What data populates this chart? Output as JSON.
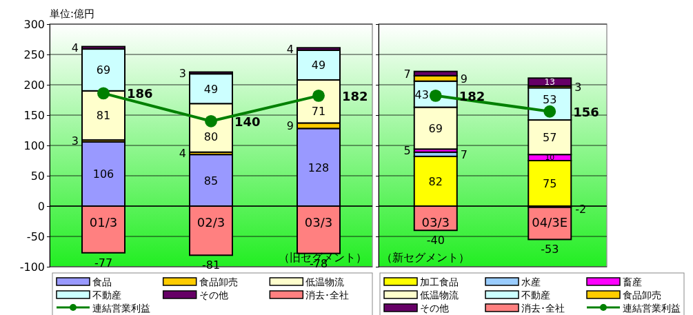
{
  "chart_data": [
    {
      "type": "bar",
      "ylabel": "単位:億円",
      "stacked": true,
      "categories": [
        "01/3",
        "02/3",
        "03/3"
      ],
      "ylim": [
        -100,
        300
      ],
      "yticks": [
        -100,
        -50,
        0,
        50,
        100,
        150,
        200,
        250,
        300
      ],
      "grid": "y",
      "legend": "bottom",
      "data_labels": true,
      "marker": "circle",
      "annotations": [
        "（旧セグメント）"
      ],
      "series": [
        {
          "name": "食品",
          "color": "#9999ff",
          "values": [
            106,
            85,
            128
          ]
        },
        {
          "name": "食品卸売",
          "color": "#ffcc00",
          "values": [
            3,
            4,
            9
          ]
        },
        {
          "name": "低温物流",
          "color": "#ffffcc",
          "values": [
            81,
            80,
            71
          ]
        },
        {
          "name": "不動産",
          "color": "#ccffff",
          "values": [
            69,
            49,
            49
          ]
        },
        {
          "name": "その他",
          "color": "#660066",
          "values": [
            4,
            3,
            4
          ]
        },
        {
          "name": "消去･全社",
          "color": "#ff8080",
          "values": [
            -77,
            -81,
            -78
          ]
        },
        {
          "name": "連結営業利益",
          "type": "line",
          "color": "#008000",
          "values": [
            186,
            140,
            182
          ]
        }
      ]
    },
    {
      "type": "bar",
      "stacked": true,
      "categories": [
        "03/3",
        "04/3E"
      ],
      "ylim": [
        -100,
        300
      ],
      "yticks": [
        -100,
        -50,
        0,
        50,
        100,
        150,
        200,
        250,
        300
      ],
      "tick_labels": "x",
      "grid": "y",
      "legend": "bottom",
      "data_labels": true,
      "marker": "circle",
      "annotations": [
        "（新セグメント）"
      ],
      "series": [
        {
          "name": "加工食品",
          "color": "#ffff00",
          "values": [
            82,
            75
          ]
        },
        {
          "name": "水産",
          "color": "#99ccff",
          "values": [
            7,
            -2
          ]
        },
        {
          "name": "畜産",
          "color": "#ff00ff",
          "values": [
            5,
            10
          ]
        },
        {
          "name": "低温物流",
          "color": "#ffffcc",
          "values": [
            69,
            57
          ]
        },
        {
          "name": "不動産",
          "color": "#ccffff",
          "values": [
            43,
            53
          ]
        },
        {
          "name": "食品卸売",
          "color": "#ffcc00",
          "values": [
            9,
            3
          ]
        },
        {
          "name": "その他",
          "color": "#660066",
          "values": [
            7,
            13
          ]
        },
        {
          "name": "消去･全社",
          "color": "#ff8080",
          "values": [
            -40,
            -53
          ]
        },
        {
          "name": "連結営業利益",
          "type": "line",
          "color": "#008000",
          "values": [
            182,
            156
          ]
        }
      ]
    }
  ]
}
